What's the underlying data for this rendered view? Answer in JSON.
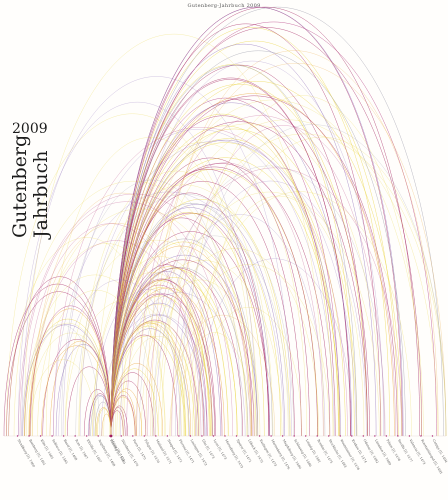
{
  "running_head": "Gutenberg-Jahrbuch 2009",
  "title": {
    "line1": "Gutenberg",
    "line2": "Jahrbuch",
    "year": "2009"
  },
  "colors": {
    "hub": "#a01a5a",
    "magenta": "#b0307a",
    "violet": "#8a6ab8",
    "yellow": "#e8d23a",
    "orange": "#e8a030",
    "grey": "#9a9aa8"
  },
  "hub_label": "Mainz [I], 1454",
  "place_labels": [
    "Straßburg [I], 1460",
    "Bamberg [I], 1461",
    "Köln [I], 1465",
    "Subiaco [I], 1465",
    "Basel [I], 1468",
    "Rom [I], 1467",
    "Eltville [I], 1467",
    "Augsburg [I], 1468",
    "Venedig [I], 1469",
    "Nürnberg [I], 1470",
    "Paris [I], 1470",
    "Foligno [I], 1470",
    "Mailand [I], 1471",
    "Neapel [I], 1471",
    "Florenz [I], 1471",
    "Lauingen [I], 1472",
    "Ulm [I], 1473",
    "Lyon [I], 1473",
    "Merseburg [I], 1473",
    "Speyer [I], 1471",
    "Lübeck [I], 1475",
    "Esslingen [I], 1473",
    "Marienburg [I], 1476",
    "Magdeburg [I], 1480",
    "Schleswig [I], 1486",
    "Leipzig [I], 1481",
    "Breslau [I], 1475",
    "Stockholm [I], 1483",
    "Westminster [I], 1476",
    "Krakau [I], 1474",
    "Odense [I], 1482",
    "Lissabon [I], 1489",
    "Pilsen [I], 1476",
    "Sevilla [I], 1477",
    "Valencia [I], 1473",
    "Konstantinopel [I], 1493",
    "Cetinje [I], 1494"
  ]
}
